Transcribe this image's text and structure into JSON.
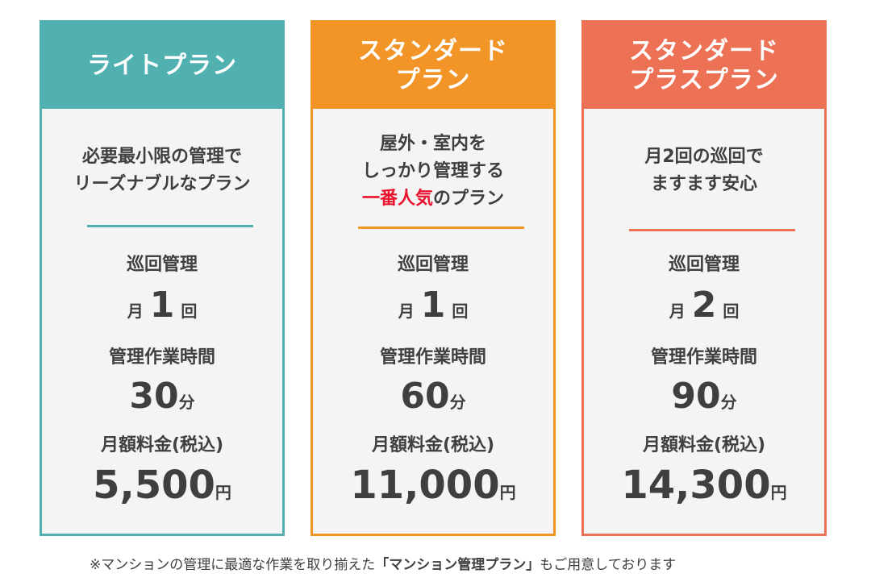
{
  "plans": [
    {
      "title_lines": [
        "ライトプラン"
      ],
      "desc_lines": [
        "必要最小限の管理で",
        "リーズナブルなプラン"
      ],
      "patrol_label": "巡回管理",
      "patrol_prefix": "月",
      "patrol_count": "1",
      "patrol_suffix": "回",
      "work_label": "管理作業時間",
      "work_value": "30",
      "work_unit": "分",
      "fee_label": "月額料金(税込)",
      "fee_value": "5,500",
      "fee_unit": "円"
    },
    {
      "title_lines": [
        "スタンダード",
        "プラン"
      ],
      "desc_lines": [
        "屋外・室内を",
        "しっかり管理する"
      ],
      "desc_accent": "一番人気",
      "desc_tail": "のプラン",
      "patrol_label": "巡回管理",
      "patrol_prefix": "月",
      "patrol_count": "1",
      "patrol_suffix": "回",
      "work_label": "管理作業時間",
      "work_value": "60",
      "work_unit": "分",
      "fee_label": "月額料金(税込)",
      "fee_value": "11,000",
      "fee_unit": "円"
    },
    {
      "title_lines": [
        "スタンダード",
        "プラスプラン"
      ],
      "desc_lines": [
        "月2回の巡回で",
        "ますます安心"
      ],
      "patrol_label": "巡回管理",
      "patrol_prefix": "月",
      "patrol_count": "2",
      "patrol_suffix": "回",
      "work_label": "管理作業時間",
      "work_value": "90",
      "work_unit": "分",
      "fee_label": "月額料金(税込)",
      "fee_value": "14,300",
      "fee_unit": "円"
    }
  ],
  "colors": {
    "teal": "#51b1b0",
    "orange": "#f29426",
    "coral": "#ed7154",
    "accent_red": "#e8132e",
    "text": "#3f3f3f"
  },
  "footnote": {
    "prefix": "※マンションの管理に最適な作業を取り揃えた",
    "highlight": "「マンション管理プラン」",
    "suffix": "もご用意しております"
  }
}
